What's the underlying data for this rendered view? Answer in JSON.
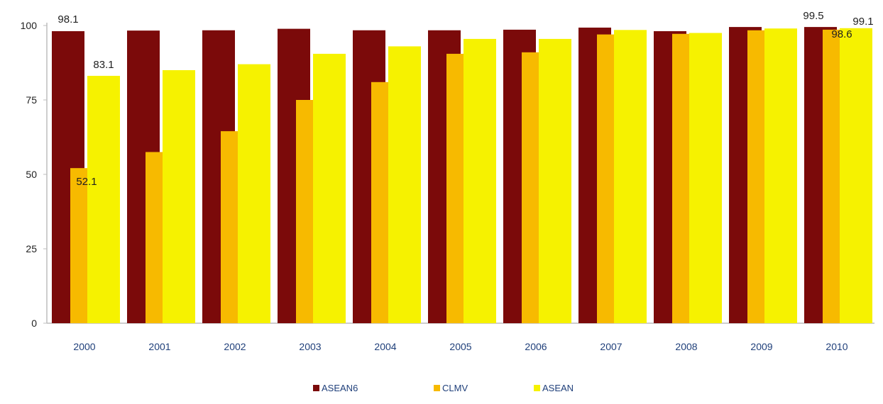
{
  "chart_data": {
    "type": "bar",
    "categories": [
      "2000",
      "2001",
      "2002",
      "2003",
      "2004",
      "2005",
      "2006",
      "2007",
      "2008",
      "2009",
      "2010"
    ],
    "series": [
      {
        "name": "ASEAN6",
        "color": "#7b0a0a",
        "values": [
          98.1,
          98.3,
          98.4,
          98.9,
          98.4,
          98.4,
          98.6,
          99.3,
          98.1,
          99.5,
          99.5
        ]
      },
      {
        "name": "CLMV",
        "color": "#f7ba00",
        "values": [
          52.1,
          57.5,
          64.5,
          75.0,
          81.0,
          90.5,
          91.0,
          97.0,
          97.2,
          98.4,
          98.6
        ]
      },
      {
        "name": "ASEAN",
        "color": "#f6f200",
        "values": [
          83.1,
          85.0,
          87.0,
          90.5,
          93.0,
          95.5,
          95.5,
          98.5,
          97.5,
          99.0,
          99.1
        ]
      }
    ],
    "data_labels": [
      {
        "series": "ASEAN6",
        "category": "2000",
        "text": "98.1"
      },
      {
        "series": "CLMV",
        "category": "2000",
        "text": "52.1"
      },
      {
        "series": "ASEAN",
        "category": "2000",
        "text": "83.1"
      },
      {
        "series": "ASEAN6",
        "category": "2010",
        "text": "99.5"
      },
      {
        "series": "CLMV",
        "category": "2010",
        "text": "98.6"
      },
      {
        "series": "ASEAN",
        "category": "2010",
        "text": "99.1"
      }
    ],
    "y_ticks": [
      "0",
      "25",
      "50",
      "75",
      "100"
    ],
    "ylim": [
      0,
      100
    ],
    "title": "",
    "xlabel": "",
    "ylabel": "",
    "grid": false,
    "legend_position": "bottom-center"
  }
}
